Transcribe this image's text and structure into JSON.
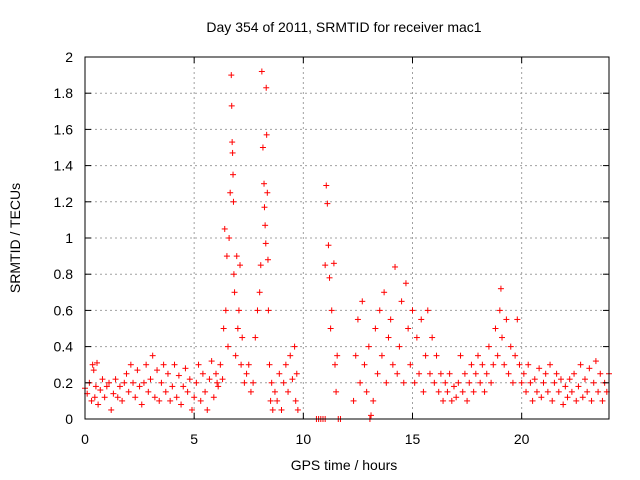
{
  "chart_data": {
    "type": "scatter",
    "title": "Day 354 of 2011, SRMTID for receiver mac1",
    "xlabel": "GPS time / hours",
    "ylabel": "SRMTID / TECUs",
    "xlim": [
      0,
      24
    ],
    "ylim": [
      0,
      2
    ],
    "x_ticks": [
      0,
      5,
      10,
      15,
      20
    ],
    "y_ticks": [
      0,
      0.2,
      0.4,
      0.6,
      0.8,
      1,
      1.2,
      1.4,
      1.6,
      1.8,
      2
    ],
    "x_tick_labels": [
      "0",
      "5",
      "10",
      "15",
      "20"
    ],
    "y_tick_labels": [
      "0",
      "0.2",
      "0.4",
      "0.6",
      "0.8",
      "1",
      "1.2",
      "1.4",
      "1.6",
      "1.8",
      "2"
    ],
    "grid": true,
    "marker": "+",
    "marker_color": "#ff0000",
    "series": [
      {
        "points": [
          [
            0.0,
            0.17
          ],
          [
            0.1,
            0.14
          ],
          [
            0.2,
            0.2
          ],
          [
            0.3,
            0.1
          ],
          [
            0.35,
            0.3
          ],
          [
            0.4,
            0.27
          ],
          [
            0.45,
            0.12
          ],
          [
            0.5,
            0.18
          ],
          [
            0.55,
            0.31
          ],
          [
            0.6,
            0.08
          ],
          [
            0.7,
            0.16
          ],
          [
            0.8,
            0.22
          ],
          [
            0.9,
            0.12
          ],
          [
            1.0,
            0.18
          ],
          [
            1.1,
            0.2
          ],
          [
            1.2,
            0.05
          ],
          [
            1.3,
            0.14
          ],
          [
            1.4,
            0.22
          ],
          [
            1.5,
            0.12
          ],
          [
            1.6,
            0.18
          ],
          [
            1.7,
            0.1
          ],
          [
            1.8,
            0.2
          ],
          [
            1.9,
            0.25
          ],
          [
            2.0,
            0.15
          ],
          [
            2.1,
            0.3
          ],
          [
            2.2,
            0.2
          ],
          [
            2.3,
            0.12
          ],
          [
            2.4,
            0.27
          ],
          [
            2.5,
            0.18
          ],
          [
            2.6,
            0.08
          ],
          [
            2.7,
            0.2
          ],
          [
            2.8,
            0.3
          ],
          [
            2.9,
            0.15
          ],
          [
            3.0,
            0.22
          ],
          [
            3.1,
            0.35
          ],
          [
            3.2,
            0.12
          ],
          [
            3.3,
            0.27
          ],
          [
            3.4,
            0.1
          ],
          [
            3.5,
            0.2
          ],
          [
            3.6,
            0.3
          ],
          [
            3.7,
            0.15
          ],
          [
            3.8,
            0.25
          ],
          [
            3.9,
            0.1
          ],
          [
            4.0,
            0.18
          ],
          [
            4.1,
            0.3
          ],
          [
            4.2,
            0.12
          ],
          [
            4.3,
            0.24
          ],
          [
            4.4,
            0.08
          ],
          [
            4.5,
            0.18
          ],
          [
            4.6,
            0.28
          ],
          [
            4.7,
            0.15
          ],
          [
            4.8,
            0.22
          ],
          [
            4.9,
            0.05
          ],
          [
            5.0,
            0.12
          ],
          [
            5.1,
            0.2
          ],
          [
            5.2,
            0.3
          ],
          [
            5.3,
            0.1
          ],
          [
            5.4,
            0.25
          ],
          [
            5.5,
            0.15
          ],
          [
            5.6,
            0.05
          ],
          [
            5.7,
            0.22
          ],
          [
            5.8,
            0.32
          ],
          [
            5.9,
            0.12
          ],
          [
            6.0,
            0.25
          ],
          [
            6.05,
            0.2
          ],
          [
            6.1,
            0.18
          ],
          [
            6.2,
            0.3
          ],
          [
            6.3,
            0.22
          ],
          [
            6.35,
            0.5
          ],
          [
            6.4,
            1.05
          ],
          [
            6.45,
            0.6
          ],
          [
            6.5,
            0.9
          ],
          [
            6.55,
            0.4
          ],
          [
            6.6,
            1.0
          ],
          [
            6.65,
            1.25
          ],
          [
            6.7,
            1.9
          ],
          [
            6.72,
            1.73
          ],
          [
            6.74,
            1.53
          ],
          [
            6.76,
            1.47
          ],
          [
            6.78,
            1.35
          ],
          [
            6.8,
            1.2
          ],
          [
            6.82,
            0.8
          ],
          [
            6.85,
            0.7
          ],
          [
            6.9,
            0.35
          ],
          [
            6.95,
            0.9
          ],
          [
            7.0,
            0.5
          ],
          [
            7.05,
            0.6
          ],
          [
            7.1,
            0.85
          ],
          [
            7.15,
            0.3
          ],
          [
            7.2,
            0.45
          ],
          [
            7.3,
            0.2
          ],
          [
            7.4,
            0.25
          ],
          [
            7.5,
            0.3
          ],
          [
            7.6,
            0.15
          ],
          [
            7.7,
            0.2
          ],
          [
            7.8,
            0.45
          ],
          [
            7.9,
            0.6
          ],
          [
            8.0,
            0.7
          ],
          [
            8.05,
            0.85
          ],
          [
            8.1,
            1.92
          ],
          [
            8.15,
            1.5
          ],
          [
            8.2,
            1.3
          ],
          [
            8.22,
            1.17
          ],
          [
            8.25,
            1.07
          ],
          [
            8.28,
            0.97
          ],
          [
            8.3,
            1.83
          ],
          [
            8.32,
            1.57
          ],
          [
            8.35,
            1.25
          ],
          [
            8.38,
            0.88
          ],
          [
            8.4,
            0.6
          ],
          [
            8.45,
            0.3
          ],
          [
            8.5,
            0.1
          ],
          [
            8.55,
            0.2
          ],
          [
            8.6,
            0.05
          ],
          [
            8.7,
            0.15
          ],
          [
            8.8,
            0.1
          ],
          [
            8.9,
            0.25
          ],
          [
            9.0,
            0.05
          ],
          [
            9.1,
            0.2
          ],
          [
            9.2,
            0.3
          ],
          [
            9.3,
            0.15
          ],
          [
            9.4,
            0.35
          ],
          [
            9.5,
            0.22
          ],
          [
            9.6,
            0.4
          ],
          [
            9.65,
            0.1
          ],
          [
            9.7,
            0.25
          ],
          [
            9.75,
            0.05
          ],
          [
            10.6,
            0.0
          ],
          [
            10.7,
            0.0
          ],
          [
            10.8,
            0.0
          ],
          [
            10.9,
            0.0
          ],
          [
            11.0,
            0.0
          ],
          [
            11.0,
            0.85
          ],
          [
            11.05,
            1.29
          ],
          [
            11.1,
            1.19
          ],
          [
            11.15,
            0.96
          ],
          [
            11.2,
            0.78
          ],
          [
            11.25,
            0.5
          ],
          [
            11.3,
            0.6
          ],
          [
            11.4,
            0.86
          ],
          [
            11.45,
            0.3
          ],
          [
            11.5,
            0.15
          ],
          [
            11.55,
            0.35
          ],
          [
            11.6,
            0.0
          ],
          [
            11.7,
            0.0
          ],
          [
            12.3,
            0.1
          ],
          [
            12.4,
            0.35
          ],
          [
            12.5,
            0.55
          ],
          [
            12.6,
            0.2
          ],
          [
            12.7,
            0.65
          ],
          [
            12.8,
            0.3
          ],
          [
            12.9,
            0.15
          ],
          [
            13.0,
            0.4
          ],
          [
            13.05,
            0.0
          ],
          [
            13.1,
            0.02
          ],
          [
            13.2,
            0.1
          ],
          [
            13.3,
            0.5
          ],
          [
            13.4,
            0.25
          ],
          [
            13.5,
            0.6
          ],
          [
            13.6,
            0.35
          ],
          [
            13.7,
            0.7
          ],
          [
            13.8,
            0.2
          ],
          [
            13.9,
            0.45
          ],
          [
            14.0,
            0.55
          ],
          [
            14.1,
            0.3
          ],
          [
            14.2,
            0.84
          ],
          [
            14.3,
            0.25
          ],
          [
            14.4,
            0.4
          ],
          [
            14.5,
            0.65
          ],
          [
            14.6,
            0.2
          ],
          [
            14.7,
            0.75
          ],
          [
            14.8,
            0.5
          ],
          [
            14.9,
            0.3
          ],
          [
            15.0,
            0.6
          ],
          [
            15.1,
            0.2
          ],
          [
            15.2,
            0.45
          ],
          [
            15.3,
            0.25
          ],
          [
            15.4,
            0.55
          ],
          [
            15.5,
            0.15
          ],
          [
            15.6,
            0.35
          ],
          [
            15.7,
            0.6
          ],
          [
            15.8,
            0.25
          ],
          [
            15.9,
            0.45
          ],
          [
            16.0,
            0.2
          ],
          [
            16.1,
            0.35
          ],
          [
            16.2,
            0.15
          ],
          [
            16.3,
            0.25
          ],
          [
            16.4,
            0.1
          ],
          [
            16.5,
            0.2
          ],
          [
            16.6,
            0.15
          ],
          [
            16.7,
            0.25
          ],
          [
            16.8,
            0.1
          ],
          [
            16.9,
            0.18
          ],
          [
            17.0,
            0.12
          ],
          [
            17.1,
            0.2
          ],
          [
            17.2,
            0.35
          ],
          [
            17.3,
            0.15
          ],
          [
            17.4,
            0.25
          ],
          [
            17.5,
            0.1
          ],
          [
            17.6,
            0.2
          ],
          [
            17.7,
            0.3
          ],
          [
            17.8,
            0.15
          ],
          [
            17.9,
            0.25
          ],
          [
            18.0,
            0.35
          ],
          [
            18.1,
            0.2
          ],
          [
            18.2,
            0.3
          ],
          [
            18.3,
            0.15
          ],
          [
            18.4,
            0.25
          ],
          [
            18.5,
            0.4
          ],
          [
            18.6,
            0.2
          ],
          [
            18.7,
            0.3
          ],
          [
            18.8,
            0.5
          ],
          [
            18.9,
            0.35
          ],
          [
            19.0,
            0.6
          ],
          [
            19.05,
            0.72
          ],
          [
            19.1,
            0.45
          ],
          [
            19.2,
            0.3
          ],
          [
            19.3,
            0.55
          ],
          [
            19.4,
            0.25
          ],
          [
            19.5,
            0.4
          ],
          [
            19.6,
            0.2
          ],
          [
            19.7,
            0.35
          ],
          [
            19.8,
            0.55
          ],
          [
            19.9,
            0.3
          ],
          [
            20.0,
            0.2
          ],
          [
            20.1,
            0.25
          ],
          [
            20.2,
            0.15
          ],
          [
            20.3,
            0.3
          ],
          [
            20.4,
            0.2
          ],
          [
            20.5,
            0.1
          ],
          [
            20.6,
            0.22
          ],
          [
            20.7,
            0.15
          ],
          [
            20.8,
            0.28
          ],
          [
            20.9,
            0.12
          ],
          [
            21.0,
            0.2
          ],
          [
            21.1,
            0.25
          ],
          [
            21.2,
            0.15
          ],
          [
            21.3,
            0.3
          ],
          [
            21.4,
            0.1
          ],
          [
            21.5,
            0.2
          ],
          [
            21.6,
            0.25
          ],
          [
            21.7,
            0.15
          ],
          [
            21.8,
            0.22
          ],
          [
            21.9,
            0.08
          ],
          [
            22.0,
            0.18
          ],
          [
            22.1,
            0.12
          ],
          [
            22.2,
            0.22
          ],
          [
            22.3,
            0.15
          ],
          [
            22.4,
            0.25
          ],
          [
            22.5,
            0.1
          ],
          [
            22.6,
            0.18
          ],
          [
            22.7,
            0.3
          ],
          [
            22.8,
            0.12
          ],
          [
            22.9,
            0.22
          ],
          [
            23.0,
            0.15
          ],
          [
            23.1,
            0.28
          ],
          [
            23.2,
            0.1
          ],
          [
            23.3,
            0.2
          ],
          [
            23.4,
            0.32
          ],
          [
            23.5,
            0.15
          ],
          [
            23.6,
            0.25
          ],
          [
            23.7,
            0.1
          ],
          [
            23.8,
            0.2
          ],
          [
            23.9,
            0.15
          ],
          [
            24.0,
            0.25
          ]
        ]
      }
    ]
  }
}
